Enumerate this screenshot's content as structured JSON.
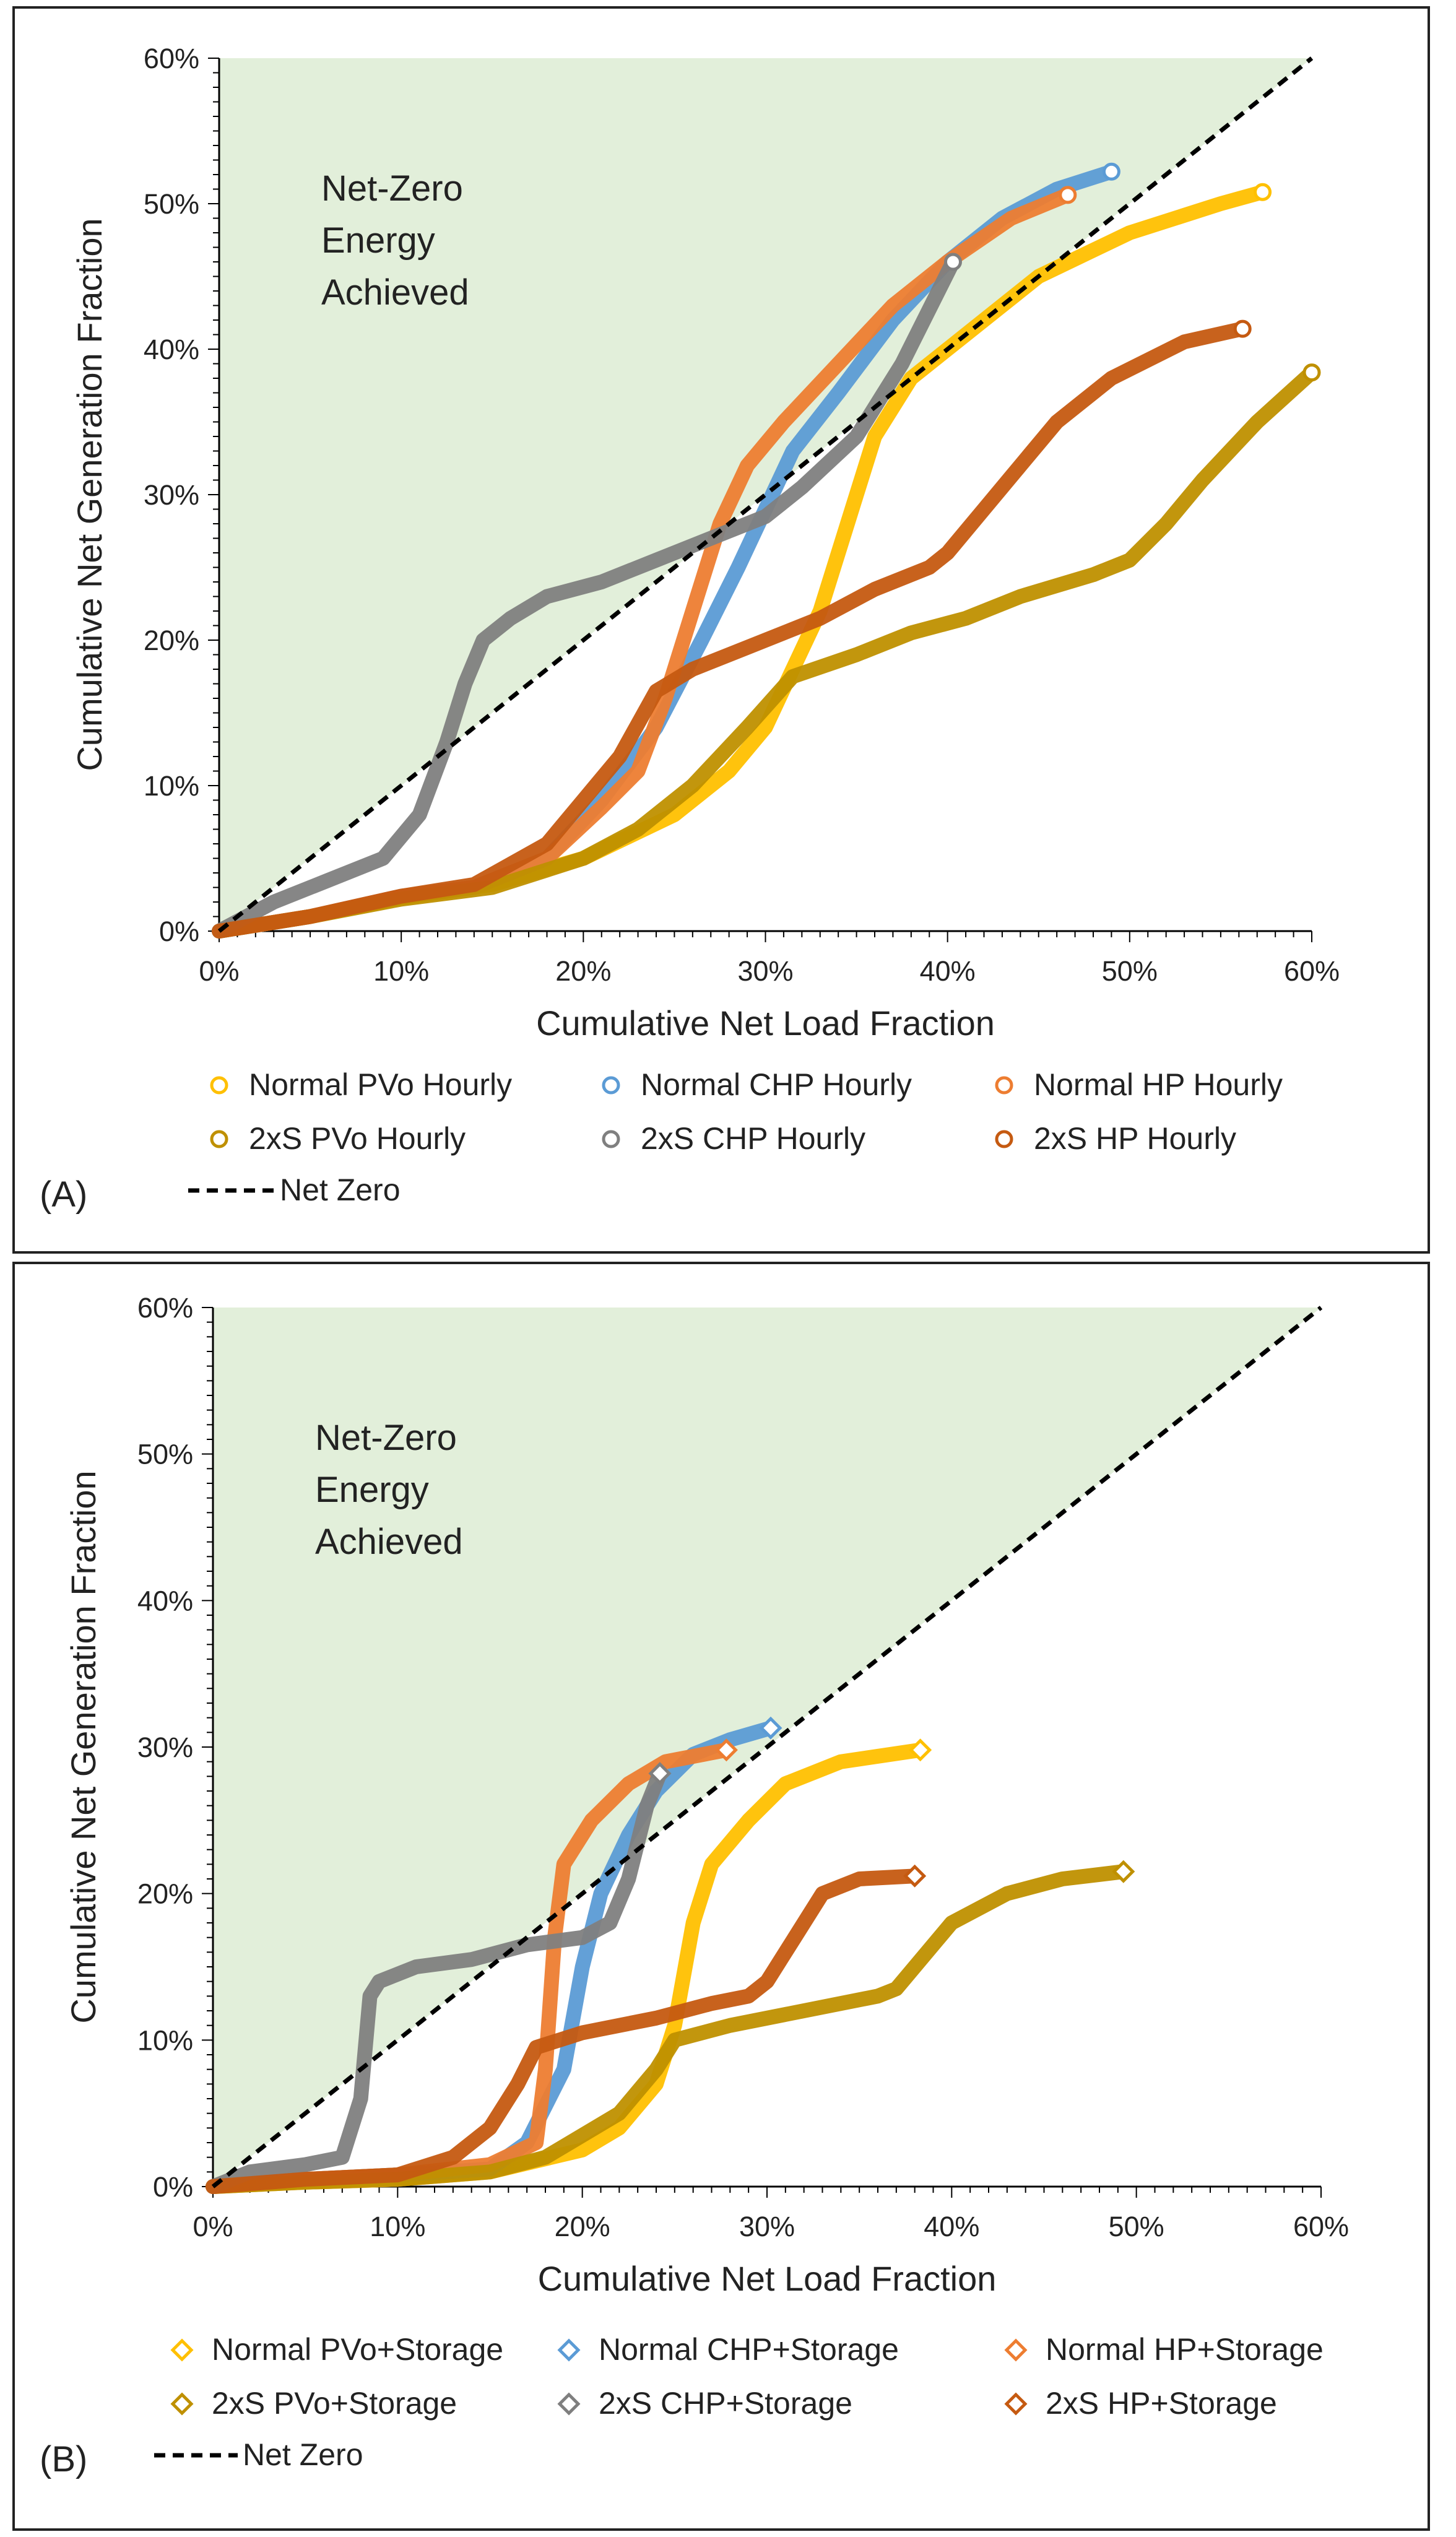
{
  "colors": {
    "region": "#e2efda",
    "normal_pvo": "#ffc000",
    "normal_chp": "#5b9bd5",
    "normal_hp": "#ed7d31",
    "twox_pvo": "#bf9000",
    "twox_chp": "#7f7f7f",
    "twox_hp": "#c55a11",
    "netzero": "#000000"
  },
  "chart_data": [
    {
      "panel": "A",
      "type": "line",
      "panel_label": "(A)",
      "region_text": [
        "Net-Zero",
        "Energy",
        "Achieved"
      ],
      "xlabel": "Cumulative Net Load Fraction",
      "ylabel": "Cumulative Net Generation Fraction",
      "xlim": [
        0,
        60
      ],
      "ylim": [
        0,
        60
      ],
      "x_ticks": [
        "0%",
        "10%",
        "20%",
        "30%",
        "40%",
        "50%",
        "60%"
      ],
      "y_ticks": [
        "0%",
        "10%",
        "20%",
        "30%",
        "40%",
        "50%",
        "60%"
      ],
      "end_marker": "circle",
      "netzero_label": "Net Zero",
      "series": [
        {
          "name": "Normal PVo Hourly",
          "color_key": "normal_pvo",
          "points": [
            [
              0,
              0
            ],
            [
              5,
              1
            ],
            [
              10,
              2.3
            ],
            [
              15,
              3.2
            ],
            [
              20,
              5
            ],
            [
              25,
              8
            ],
            [
              28,
              11
            ],
            [
              30,
              14
            ],
            [
              31.5,
              18
            ],
            [
              33,
              22
            ],
            [
              34.5,
              28
            ],
            [
              36,
              34
            ],
            [
              38,
              38
            ],
            [
              41,
              41
            ],
            [
              45,
              45
            ],
            [
              50,
              48
            ],
            [
              55,
              50
            ],
            [
              57.3,
              50.8
            ]
          ]
        },
        {
          "name": "Normal CHP Hourly",
          "color_key": "normal_chp",
          "points": [
            [
              0,
              0
            ],
            [
              5,
              1
            ],
            [
              10,
              2.4
            ],
            [
              14,
              3
            ],
            [
              18,
              5
            ],
            [
              21,
              9
            ],
            [
              24,
              14
            ],
            [
              26.5,
              20
            ],
            [
              28.5,
              25
            ],
            [
              30,
              29
            ],
            [
              31.5,
              33
            ],
            [
              34,
              37
            ],
            [
              37,
              42
            ],
            [
              40,
              46
            ],
            [
              43,
              49
            ],
            [
              46,
              51
            ],
            [
              49,
              52.2
            ]
          ]
        },
        {
          "name": "Normal HP Hourly",
          "color_key": "normal_hp",
          "points": [
            [
              0,
              0
            ],
            [
              5,
              1
            ],
            [
              10,
              2.4
            ],
            [
              14,
              3
            ],
            [
              18,
              5
            ],
            [
              21,
              8.5
            ],
            [
              23,
              11
            ],
            [
              24.5,
              16
            ],
            [
              26,
              22
            ],
            [
              27.5,
              28
            ],
            [
              29,
              32
            ],
            [
              31,
              35
            ],
            [
              34,
              39
            ],
            [
              37,
              43
            ],
            [
              40,
              46
            ],
            [
              43.5,
              49
            ],
            [
              46.6,
              50.6
            ]
          ]
        },
        {
          "name": "2xS PVo Hourly",
          "color_key": "twox_pvo",
          "points": [
            [
              0,
              0
            ],
            [
              5,
              1
            ],
            [
              10,
              2.2
            ],
            [
              15,
              3
            ],
            [
              20,
              5
            ],
            [
              23,
              7
            ],
            [
              26,
              10
            ],
            [
              29,
              14
            ],
            [
              31.5,
              17.5
            ],
            [
              35,
              19
            ],
            [
              38,
              20.5
            ],
            [
              41,
              21.5
            ],
            [
              44,
              23
            ],
            [
              48,
              24.5
            ],
            [
              50,
              25.5
            ],
            [
              52,
              28
            ],
            [
              54,
              31
            ],
            [
              57,
              35
            ],
            [
              60,
              38.4
            ]
          ]
        },
        {
          "name": "2xS CHP Hourly",
          "color_key": "twox_chp",
          "points": [
            [
              0,
              0
            ],
            [
              3,
              2
            ],
            [
              6,
              3.5
            ],
            [
              9,
              5
            ],
            [
              11,
              8
            ],
            [
              12.5,
              13
            ],
            [
              13.5,
              17
            ],
            [
              14.5,
              20
            ],
            [
              16,
              21.5
            ],
            [
              18,
              23
            ],
            [
              21,
              24
            ],
            [
              24,
              25.5
            ],
            [
              27,
              27
            ],
            [
              30,
              28.5
            ],
            [
              32,
              30.5
            ],
            [
              35,
              34
            ],
            [
              37.5,
              39
            ],
            [
              40.3,
              46
            ]
          ]
        },
        {
          "name": "2xS HP Hourly",
          "color_key": "twox_hp",
          "points": [
            [
              0,
              0
            ],
            [
              5,
              1
            ],
            [
              10,
              2.4
            ],
            [
              14,
              3.2
            ],
            [
              18,
              6
            ],
            [
              20,
              9
            ],
            [
              22,
              12
            ],
            [
              24,
              16.5
            ],
            [
              26,
              18
            ],
            [
              29,
              19.5
            ],
            [
              33,
              21.5
            ],
            [
              36,
              23.5
            ],
            [
              39,
              25
            ],
            [
              40,
              26
            ],
            [
              42,
              29
            ],
            [
              44,
              32
            ],
            [
              46,
              35
            ],
            [
              49,
              38
            ],
            [
              53,
              40.5
            ],
            [
              56.2,
              41.4
            ]
          ]
        }
      ]
    },
    {
      "panel": "B",
      "type": "line",
      "panel_label": "(B)",
      "region_text": [
        "Net-Zero",
        "Energy",
        "Achieved"
      ],
      "xlabel": "Cumulative Net Load Fraction",
      "ylabel": "Cumulative Net Generation Fraction",
      "xlim": [
        0,
        60
      ],
      "ylim": [
        0,
        60
      ],
      "x_ticks": [
        "0%",
        "10%",
        "20%",
        "30%",
        "40%",
        "50%",
        "60%"
      ],
      "y_ticks": [
        "0%",
        "10%",
        "20%",
        "30%",
        "40%",
        "50%",
        "60%"
      ],
      "end_marker": "diamond",
      "netzero_label": "Net Zero",
      "series": [
        {
          "name": "Normal PVo+Storage",
          "color_key": "normal_pvo",
          "points": [
            [
              0,
              0
            ],
            [
              5,
              0.3
            ],
            [
              10,
              0.5
            ],
            [
              15,
              1
            ],
            [
              20,
              2.5
            ],
            [
              22,
              4
            ],
            [
              24,
              7
            ],
            [
              25,
              11
            ],
            [
              26,
              18
            ],
            [
              27,
              22
            ],
            [
              29,
              25
            ],
            [
              31,
              27.5
            ],
            [
              34,
              29
            ],
            [
              38.3,
              29.8
            ]
          ]
        },
        {
          "name": "Normal CHP+Storage",
          "color_key": "normal_chp",
          "points": [
            [
              0,
              0
            ],
            [
              5,
              0.5
            ],
            [
              10,
              0.8
            ],
            [
              15,
              1.2
            ],
            [
              17,
              3
            ],
            [
              19,
              8
            ],
            [
              20,
              15
            ],
            [
              21,
              20
            ],
            [
              22.5,
              24
            ],
            [
              24,
              27
            ],
            [
              26,
              29.5
            ],
            [
              28,
              30.5
            ],
            [
              30.2,
              31.3
            ]
          ]
        },
        {
          "name": "Normal HP+Storage",
          "color_key": "normal_hp",
          "points": [
            [
              0,
              0
            ],
            [
              5,
              0.5
            ],
            [
              10,
              0.8
            ],
            [
              15,
              1.5
            ],
            [
              17.5,
              3
            ],
            [
              18,
              8
            ],
            [
              18.5,
              17
            ],
            [
              19,
              22
            ],
            [
              20.5,
              25
            ],
            [
              22.5,
              27.5
            ],
            [
              24.5,
              29
            ],
            [
              27.8,
              29.8
            ]
          ]
        },
        {
          "name": "2xS PVo+Storage",
          "color_key": "twox_pvo",
          "points": [
            [
              0,
              0
            ],
            [
              5,
              0.3
            ],
            [
              10,
              0.5
            ],
            [
              15,
              1
            ],
            [
              18,
              2
            ],
            [
              20,
              3.5
            ],
            [
              22,
              5
            ],
            [
              24,
              8
            ],
            [
              25,
              10
            ],
            [
              28,
              11
            ],
            [
              32,
              12
            ],
            [
              36,
              13
            ],
            [
              37,
              13.5
            ],
            [
              40,
              18
            ],
            [
              43,
              20
            ],
            [
              46,
              21
            ],
            [
              49.3,
              21.5
            ]
          ]
        },
        {
          "name": "2xS CHP+Storage",
          "color_key": "twox_chp",
          "points": [
            [
              0,
              0
            ],
            [
              2,
              1
            ],
            [
              5,
              1.5
            ],
            [
              7,
              2
            ],
            [
              8,
              6
            ],
            [
              8.5,
              13
            ],
            [
              9,
              14
            ],
            [
              11,
              15
            ],
            [
              14,
              15.5
            ],
            [
              17,
              16.5
            ],
            [
              20,
              17
            ],
            [
              21.5,
              18
            ],
            [
              22.5,
              21
            ],
            [
              23.5,
              26
            ],
            [
              24.2,
              28.2
            ]
          ]
        },
        {
          "name": "2xS HP+Storage",
          "color_key": "twox_hp",
          "points": [
            [
              0,
              0
            ],
            [
              5,
              0.5
            ],
            [
              10,
              0.8
            ],
            [
              13,
              2
            ],
            [
              15,
              4
            ],
            [
              16.5,
              7
            ],
            [
              17.5,
              9.5
            ],
            [
              20,
              10.5
            ],
            [
              24,
              11.5
            ],
            [
              27,
              12.5
            ],
            [
              29,
              13
            ],
            [
              30,
              14
            ],
            [
              31.5,
              17
            ],
            [
              33,
              20
            ],
            [
              35,
              21
            ],
            [
              38,
              21.2
            ]
          ]
        }
      ]
    }
  ]
}
